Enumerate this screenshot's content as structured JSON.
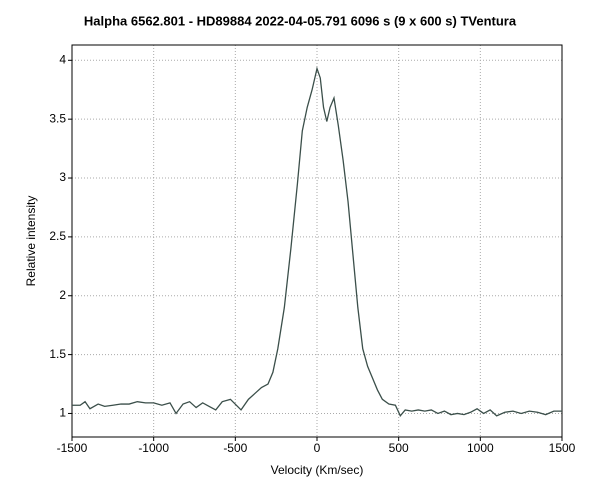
{
  "chart_data": {
    "type": "line",
    "title": "Halpha 6562.801 - HD89884   2022-04-05.791   6096 s (9 x 600 s)   TVentura",
    "xlabel": "Velocity (Km/sec)",
    "ylabel": "Relative intensity",
    "xlim": [
      -1500,
      1500
    ],
    "ylim": [
      0.8,
      4.13
    ],
    "xticks": [
      -1500,
      -1000,
      -500,
      0,
      500,
      1000,
      1500
    ],
    "yticks": [
      1,
      1.5,
      2,
      2.5,
      3,
      3.5,
      4
    ],
    "grid": true,
    "series": [
      {
        "color": "#3b4f4a",
        "x": [
          -1500,
          -1450,
          -1420,
          -1390,
          -1340,
          -1300,
          -1250,
          -1200,
          -1150,
          -1100,
          -1050,
          -1000,
          -950,
          -900,
          -863,
          -820,
          -780,
          -740,
          -700,
          -660,
          -620,
          -580,
          -530,
          -465,
          -420,
          -380,
          -340,
          -300,
          -270,
          -240,
          -200,
          -160,
          -120,
          -90,
          -60,
          -30,
          0,
          20,
          40,
          60,
          80,
          104,
          130,
          160,
          190,
          220,
          250,
          280,
          310,
          340,
          370,
          400,
          440,
          480,
          510,
          540,
          580,
          620,
          660,
          700,
          740,
          780,
          820,
          860,
          900,
          940,
          980,
          1020,
          1060,
          1100,
          1150,
          1200,
          1250,
          1300,
          1350,
          1400,
          1450,
          1500
        ],
        "values": [
          1.07,
          1.07,
          1.1,
          1.04,
          1.08,
          1.06,
          1.07,
          1.08,
          1.08,
          1.1,
          1.09,
          1.09,
          1.07,
          1.09,
          1.0,
          1.08,
          1.1,
          1.05,
          1.09,
          1.06,
          1.03,
          1.1,
          1.12,
          1.03,
          1.12,
          1.17,
          1.22,
          1.25,
          1.35,
          1.55,
          1.9,
          2.4,
          2.95,
          3.4,
          3.6,
          3.75,
          3.93,
          3.85,
          3.6,
          3.48,
          3.6,
          3.68,
          3.45,
          3.15,
          2.8,
          2.35,
          1.9,
          1.55,
          1.4,
          1.3,
          1.2,
          1.12,
          1.08,
          1.07,
          0.98,
          1.03,
          1.02,
          1.03,
          1.02,
          1.03,
          1.0,
          1.02,
          0.99,
          1.0,
          0.99,
          1.01,
          1.04,
          1.0,
          1.03,
          0.98,
          1.01,
          1.02,
          1.0,
          1.02,
          1.01,
          0.99,
          1.02,
          1.02
        ]
      }
    ]
  }
}
